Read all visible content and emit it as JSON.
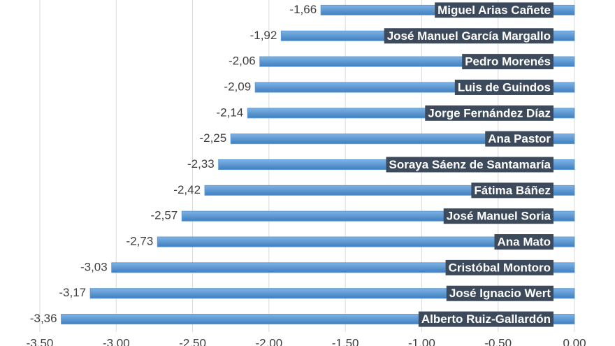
{
  "chart_data": {
    "type": "hbar",
    "categories": [
      "Miguel Arias Cañete",
      "José Manuel García Margallo",
      "Pedro Morenés",
      "Luis de Guindos",
      "Jorge Fernández Díaz",
      "Ana Pastor",
      "Soraya Sáenz de Santamaría",
      "Fátima Báñez",
      "José Manuel Soria",
      "Ana Mato",
      "Cristóbal Montoro",
      "José Ignacio Wert",
      "Alberto Ruiz-Gallardón"
    ],
    "values": [
      -1.66,
      -1.92,
      -2.06,
      -2.09,
      -2.14,
      -2.25,
      -2.33,
      -2.42,
      -2.57,
      -2.73,
      -3.03,
      -3.17,
      -3.36
    ],
    "value_labels": [
      "-1,66",
      "-1,92",
      "-2,06",
      "-2,09",
      "-2,14",
      "-2,25",
      "-2,33",
      "-2,42",
      "-2,57",
      "-2,73",
      "-3,03",
      "-3,17",
      "-3,36"
    ],
    "color": "#5b9bd5",
    "xlim": [
      -3.5,
      0
    ],
    "xticks": [
      {
        "value": -3.5,
        "label": "-3,50"
      },
      {
        "value": -3,
        "label": "-3,00"
      },
      {
        "value": -2.5,
        "label": "-2,50"
      },
      {
        "value": -2,
        "label": "-2,00"
      },
      {
        "value": -1.5,
        "label": "-1,50"
      },
      {
        "value": -1,
        "label": "-1,00"
      },
      {
        "value": -0.5,
        "label": "-0,50"
      },
      {
        "value": 0,
        "label": "0,00"
      }
    ],
    "grid": true
  }
}
